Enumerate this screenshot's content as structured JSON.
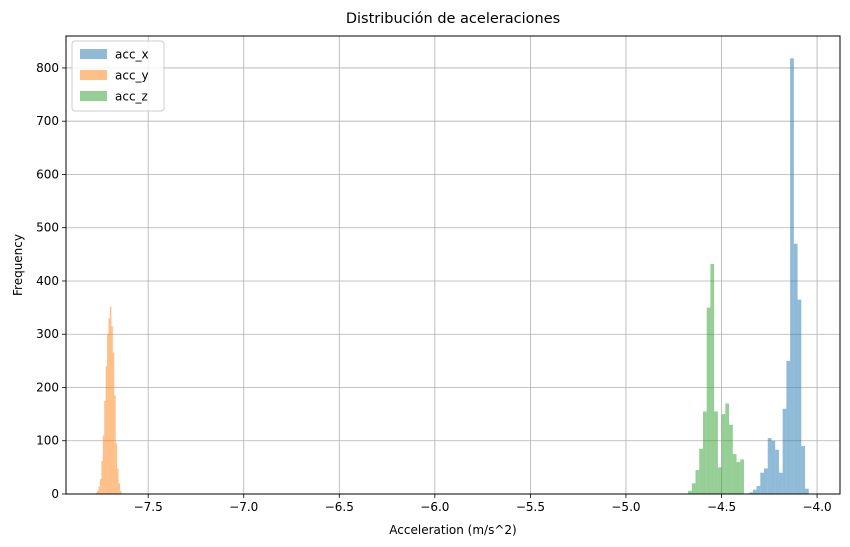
{
  "chart_data": {
    "type": "histogram",
    "title": "Distribución de aceleraciones",
    "xlabel": "Acceleration (m/s^2)",
    "ylabel": "Frequency",
    "xlim": [
      -7.93,
      -3.88
    ],
    "ylim": [
      0,
      860
    ],
    "xticks": [
      -7.5,
      -7.0,
      -6.5,
      -6.0,
      -5.5,
      -5.0,
      -4.5,
      -4.0
    ],
    "xtick_labels": [
      "−7.5",
      "−7.0",
      "−6.5",
      "−6.0",
      "−5.5",
      "−5.0",
      "−4.5",
      "−4.0"
    ],
    "yticks": [
      0,
      100,
      200,
      300,
      400,
      500,
      600,
      700,
      800
    ],
    "ytick_labels": [
      "0",
      "100",
      "200",
      "300",
      "400",
      "500",
      "600",
      "700",
      "800"
    ],
    "grid": true,
    "legend_position": "upper-left",
    "series": [
      {
        "name": "acc_x",
        "color": "#1f77b4",
        "alpha": 0.5,
        "bin_start": -4.375,
        "bin_width": 0.0195,
        "values": [
          1,
          3,
          8,
          15,
          40,
          48,
          105,
          100,
          83,
          40,
          160,
          250,
          818,
          470,
          365,
          90,
          10
        ]
      },
      {
        "name": "acc_y",
        "color": "#ff7f0e",
        "alpha": 0.5,
        "bin_start": -7.775,
        "bin_width": 0.0075,
        "values": [
          2,
          6,
          14,
          28,
          62,
          110,
          175,
          240,
          300,
          330,
          352,
          315,
          265,
          185,
          95,
          48,
          20,
          6
        ]
      },
      {
        "name": "acc_z",
        "color": "#2ca02c",
        "alpha": 0.5,
        "bin_start": -4.675,
        "bin_width": 0.0195,
        "values": [
          6,
          20,
          45,
          85,
          155,
          350,
          432,
          155,
          50,
          150,
          170,
          130,
          75,
          60,
          65
        ]
      }
    ]
  }
}
